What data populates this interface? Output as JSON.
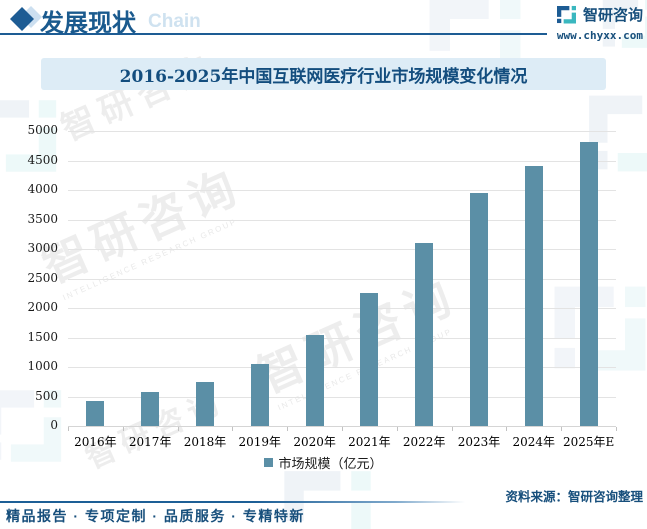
{
  "header": {
    "title": "发展现状",
    "bg_text": "Chain",
    "brand": {
      "name": "智研咨询",
      "url": "www.chyxx.com"
    }
  },
  "chart": {
    "title": "2016-2025年中国互联网医疗行业市场规模变化情况",
    "legend": "市场规模（亿元）",
    "source": "资料来源：智研咨询整理"
  },
  "footer": {
    "tagline": "精品报告 · 专项定制 · 品质服务 · 专精特新"
  },
  "watermark": {
    "text": "智研咨询",
    "subtext": "INTELLIGENCE RESEARCH GROUP"
  },
  "colors": {
    "bar": "#5b8fa6",
    "accent_blue": "#1d5c94",
    "accent_teal": "#3ab7bf",
    "band_bg": "#ddecf6",
    "dark_text": "#174f7c"
  },
  "chart_data": {
    "type": "bar",
    "title": "2016-2025年中国互联网医疗行业市场规模变化情况",
    "categories": [
      "2016年",
      "2017年",
      "2018年",
      "2019年",
      "2020年",
      "2021年",
      "2022年",
      "2023年",
      "2024年",
      "2025年E"
    ],
    "values": [
      430,
      570,
      745,
      1050,
      1550,
      2250,
      3100,
      3950,
      4400,
      4810
    ],
    "series_name": "市场规模（亿元）",
    "xlabel": "",
    "ylabel": "",
    "ylim": [
      0,
      5000
    ],
    "yticks": [
      0,
      500,
      1000,
      1500,
      2000,
      2500,
      3000,
      3500,
      4000,
      4500,
      5000
    ],
    "grid": true,
    "legend_position": "bottom",
    "bar_color": "#5b8fa6"
  }
}
